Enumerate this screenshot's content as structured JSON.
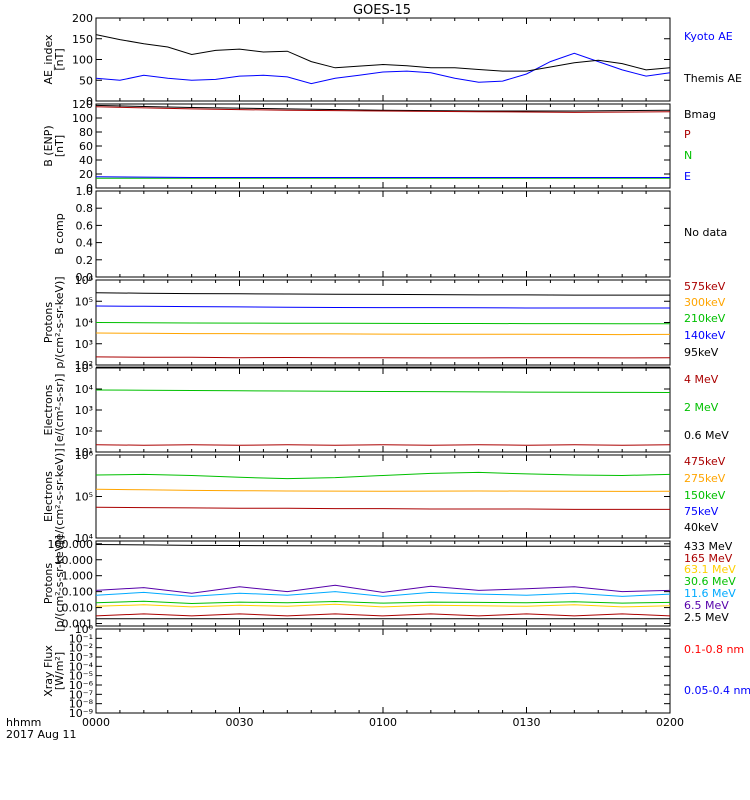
{
  "title": "GOES-15",
  "x_axis": {
    "ticks": [
      "0000",
      "0030",
      "0100",
      "0130",
      "0200"
    ],
    "label": "hhmm",
    "date": "2017 Aug 11"
  },
  "chart_data": [
    {
      "type": "line",
      "ylabel": [
        "AE_index",
        "[nT]"
      ],
      "ylim": [
        0,
        200
      ],
      "yticks": [
        "0",
        "50",
        "100",
        "150",
        "200"
      ],
      "x": [
        0,
        5,
        10,
        15,
        20,
        25,
        30,
        35,
        40,
        45,
        50,
        55,
        60,
        65,
        70,
        75,
        80,
        85,
        90,
        95,
        100,
        105,
        110,
        115,
        120
      ],
      "series": [
        {
          "name": "Kyoto AE",
          "color": "#0000ff",
          "values": [
            55,
            50,
            62,
            55,
            50,
            52,
            60,
            62,
            58,
            42,
            55,
            62,
            70,
            72,
            68,
            55,
            45,
            48,
            65,
            95,
            115,
            95,
            75,
            60,
            68
          ]
        },
        {
          "name": "Themis AE",
          "color": "#000000",
          "values": [
            160,
            148,
            138,
            130,
            112,
            122,
            125,
            118,
            120,
            95,
            80,
            84,
            88,
            85,
            80,
            80,
            76,
            72,
            72,
            82,
            92,
            98,
            90,
            75,
            80
          ]
        }
      ]
    },
    {
      "type": "line",
      "ylabel": [
        "B (ENP)",
        "[nT]"
      ],
      "ylim": [
        0,
        120
      ],
      "yticks": [
        "0",
        "20",
        "40",
        "60",
        "80",
        "100",
        "120"
      ],
      "x": [
        0,
        20,
        40,
        60,
        80,
        100,
        120
      ],
      "series": [
        {
          "name": "Bmag",
          "color": "#000000",
          "values": [
            118,
            115,
            113,
            111,
            110,
            110,
            111
          ]
        },
        {
          "name": "P",
          "color": "#aa0000",
          "values": [
            116,
            113,
            111,
            110,
            109,
            108,
            109
          ]
        },
        {
          "name": "N",
          "color": "#00c000",
          "values": [
            14,
            14,
            14,
            14,
            14,
            14,
            14
          ]
        },
        {
          "name": "E",
          "color": "#0000ff",
          "values": [
            16,
            15,
            15,
            15,
            15,
            15,
            15
          ]
        }
      ]
    },
    {
      "type": "line",
      "ylabel": [
        "B comp"
      ],
      "ylim": [
        0,
        1
      ],
      "yticks": [
        "0.0",
        "0.2",
        "0.4",
        "0.6",
        "0.8",
        "1.0"
      ],
      "annotation": "No data",
      "series": []
    },
    {
      "type": "line",
      "scale": "log",
      "ylabel": [
        "Protons",
        "p/(cm²-s-sr-keV)]"
      ],
      "ylim": [
        100,
        1000000
      ],
      "yticks": [
        "10²",
        "10³",
        "10⁴",
        "10⁵",
        "10⁶"
      ],
      "x": [
        0,
        10,
        20,
        30,
        40,
        50,
        60,
        70,
        80,
        90,
        100,
        110,
        120
      ],
      "series": [
        {
          "name": "575keV",
          "color": "#aa0000",
          "values": [
            240,
            230,
            230,
            220,
            225,
            220,
            220,
            215,
            215,
            220,
            220,
            215,
            220
          ]
        },
        {
          "name": "300keV",
          "color": "#ffa500",
          "values": [
            3200,
            3100,
            3000,
            3000,
            2900,
            2900,
            2850,
            2800,
            2800,
            2800,
            2750,
            2700,
            2750
          ]
        },
        {
          "name": "210keV",
          "color": "#00c000",
          "values": [
            10000,
            9800,
            9500,
            9400,
            9300,
            9200,
            9100,
            9000,
            9000,
            8900,
            8900,
            8800,
            8800
          ]
        },
        {
          "name": "140keV",
          "color": "#0000ff",
          "values": [
            60000,
            58000,
            56000,
            54000,
            52000,
            51000,
            50000,
            50000,
            49000,
            48000,
            48000,
            48000,
            48000
          ]
        },
        {
          "name": "95keV",
          "color": "#000000",
          "values": [
            250000,
            240000,
            230000,
            225000,
            220000,
            215000,
            210000,
            205000,
            200000,
            200000,
            195000,
            195000,
            195000
          ]
        }
      ]
    },
    {
      "type": "line",
      "scale": "log",
      "ylabel": [
        "Electrons",
        "[e/(cm²-s-sr)]"
      ],
      "ylim": [
        10,
        100000
      ],
      "yticks": [
        "10¹",
        "10²",
        "10³",
        "10⁴",
        "10⁵"
      ],
      "x": [
        0,
        10,
        20,
        30,
        40,
        50,
        60,
        70,
        80,
        90,
        100,
        110,
        120
      ],
      "series": [
        {
          "name": "4 MeV",
          "color": "#aa0000",
          "values": [
            22,
            21,
            22,
            21,
            22,
            21,
            22,
            21,
            22,
            21,
            22,
            21,
            22
          ]
        },
        {
          "name": "2 MeV",
          "color": "#00c000",
          "values": [
            9000,
            8800,
            8500,
            8200,
            8000,
            7800,
            7600,
            7500,
            7300,
            7100,
            7000,
            6900,
            6800
          ]
        },
        {
          "name": "0.6 MeV",
          "color": "#000000",
          "values": [
            110000,
            110000,
            110000,
            110000,
            110000,
            110000,
            110000,
            110000,
            110000,
            110000,
            110000,
            110000,
            110000
          ]
        }
      ]
    },
    {
      "type": "line",
      "scale": "log",
      "ylabel": [
        "Electrons",
        "[e/(cm²-s-sr-keV)]"
      ],
      "ylim": [
        10000,
        1000000
      ],
      "yticks": [
        "10⁴",
        "10⁵",
        "10⁶"
      ],
      "x": [
        0,
        10,
        20,
        30,
        40,
        50,
        60,
        70,
        80,
        90,
        100,
        110,
        120
      ],
      "series": [
        {
          "name": "475keV",
          "color": "#aa0000",
          "values": [
            55000,
            54000,
            53000,
            52000,
            52000,
            51000,
            51000,
            50000,
            50000,
            50000,
            49000,
            49000,
            49000
          ]
        },
        {
          "name": "275keV",
          "color": "#ffa500",
          "values": [
            150000,
            145000,
            140000,
            138000,
            136000,
            135000,
            134000,
            135000,
            136000,
            135000,
            134000,
            133000,
            134000
          ]
        },
        {
          "name": "150keV",
          "color": "#00c000",
          "values": [
            330000,
            340000,
            320000,
            290000,
            270000,
            285000,
            320000,
            360000,
            380000,
            350000,
            330000,
            320000,
            340000
          ]
        },
        {
          "name": "75keV",
          "color": "#0000ff",
          "values": [
            1000000,
            1000000,
            1000000,
            1000000,
            1000000,
            1000000,
            1000000,
            1000000,
            1000000,
            1000000,
            1000000,
            1000000,
            1000000
          ]
        },
        {
          "name": "40keV",
          "color": "#000000",
          "values": [
            1000000,
            1000000,
            1000000,
            1000000,
            1000000,
            1000000,
            1000000,
            1000000,
            1000000,
            1000000,
            1000000,
            1000000,
            1000000
          ]
        }
      ]
    },
    {
      "type": "line",
      "scale": "log",
      "ylabel": [
        "Protons",
        "[p/(cm²-s-sr-keV)]"
      ],
      "ylim": [
        0.0007,
        150
      ],
      "yticks": [
        "0.001",
        "0.010",
        "0.100",
        "1.000",
        "10.000",
        "100.000"
      ],
      "ytick_values": [
        0.001,
        0.01,
        0.1,
        1,
        10,
        100
      ],
      "x": [
        0,
        10,
        20,
        30,
        40,
        50,
        60,
        70,
        80,
        90,
        100,
        110,
        120
      ],
      "series": [
        {
          "name": "433 MeV",
          "color": "#000000",
          "values": [
            90,
            85,
            80,
            78,
            75,
            74,
            73,
            72,
            71,
            70,
            70,
            69,
            70
          ]
        },
        {
          "name": "165 MeV",
          "color": "#aa0000",
          "values": [
            0.003,
            0.004,
            0.003,
            0.004,
            0.003,
            0.004,
            0.003,
            0.004,
            0.003,
            0.004,
            0.003,
            0.004,
            0.003
          ]
        },
        {
          "name": "63.1 MeV",
          "color": "#ffd000",
          "values": [
            0.012,
            0.015,
            0.011,
            0.014,
            0.012,
            0.016,
            0.011,
            0.014,
            0.013,
            0.012,
            0.015,
            0.011,
            0.013
          ]
        },
        {
          "name": "30.6 MeV",
          "color": "#00c000",
          "values": [
            0.02,
            0.025,
            0.018,
            0.022,
            0.02,
            0.024,
            0.019,
            0.022,
            0.021,
            0.02,
            0.023,
            0.019,
            0.021
          ]
        },
        {
          "name": "11.6 MeV",
          "color": "#00aaff",
          "values": [
            0.06,
            0.09,
            0.05,
            0.08,
            0.06,
            0.1,
            0.05,
            0.09,
            0.07,
            0.06,
            0.08,
            0.05,
            0.07
          ]
        },
        {
          "name": "6.5 MeV",
          "color": "#5500aa",
          "values": [
            0.12,
            0.18,
            0.08,
            0.2,
            0.1,
            0.25,
            0.09,
            0.22,
            0.12,
            0.15,
            0.2,
            0.1,
            0.12
          ]
        },
        {
          "name": "2.5 MeV",
          "color": "#000000",
          "values": [
            0.002,
            0.002,
            0.002,
            0.002,
            0.002,
            0.002,
            0.002,
            0.002,
            0.002,
            0.002,
            0.002,
            0.002,
            0.002
          ]
        }
      ]
    },
    {
      "type": "line",
      "scale": "log",
      "ylabel": [
        "Xray Flux",
        "[W/m²]"
      ],
      "ylim": [
        1e-09,
        1
      ],
      "yticks": [
        "10⁻⁹",
        "10⁻⁸",
        "10⁻⁷",
        "10⁻⁶",
        "10⁻⁵",
        "10⁻⁴",
        "10⁻³",
        "10⁻²",
        "10⁻¹",
        "10⁰"
      ],
      "series": [
        {
          "name": "0.1-0.8 nm",
          "color": "#ff0000",
          "values": []
        },
        {
          "name": "0.05-0.4 nm",
          "color": "#0000ff",
          "values": []
        }
      ]
    }
  ]
}
